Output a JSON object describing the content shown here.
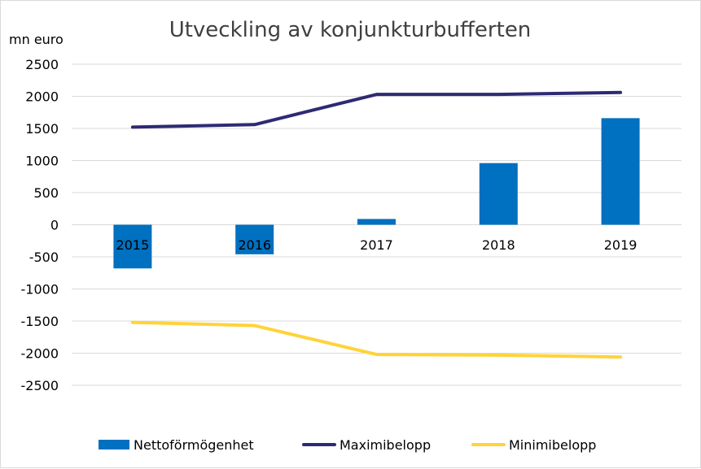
{
  "chart_data": {
    "type": "bar",
    "title": "Utveckling av konjunkturbufferten",
    "ylabel": "mn euro",
    "xlabel": "",
    "categories": [
      "2015",
      "2016",
      "2017",
      "2018",
      "2019"
    ],
    "ylim": [
      -2500,
      2500
    ],
    "yticks": [
      2500,
      2000,
      1500,
      1000,
      500,
      0,
      -500,
      -1000,
      -1500,
      -2000,
      -2500
    ],
    "grid": true,
    "legend_position": "bottom",
    "series": [
      {
        "name": "Nettoförmögenhet",
        "type": "bar",
        "color": "#0070c0",
        "values": [
          -680,
          -460,
          90,
          960,
          1660
        ]
      },
      {
        "name": "Maximibelopp",
        "type": "line",
        "color": "#2e2a73",
        "values": [
          1520,
          1560,
          2030,
          2030,
          2060
        ]
      },
      {
        "name": "Minimibelopp",
        "type": "line",
        "color": "#ffd33a",
        "values": [
          -1520,
          -1570,
          -2020,
          -2030,
          -2060
        ]
      }
    ]
  }
}
